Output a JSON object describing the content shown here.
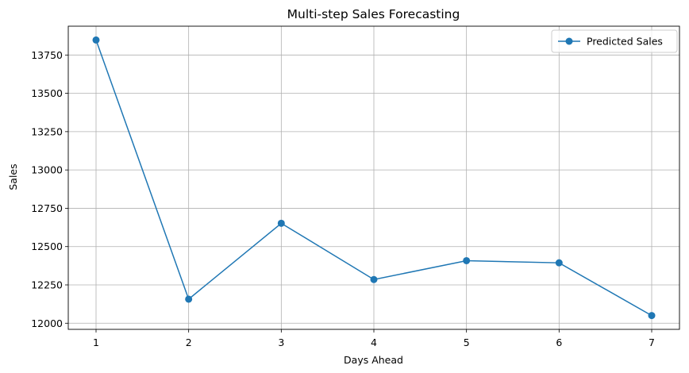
{
  "chart_data": {
    "type": "line",
    "title": "Multi-step Sales Forecasting",
    "xlabel": "Days Ahead",
    "ylabel": "Sales",
    "x": [
      1,
      2,
      3,
      4,
      5,
      6,
      7
    ],
    "series": [
      {
        "name": "Predicted Sales",
        "values": [
          13848,
          12157,
          12652,
          12285,
          12408,
          12394,
          12050
        ],
        "color": "#1f77b4"
      }
    ],
    "xlim": [
      0.7,
      7.3
    ],
    "ylim": [
      11960,
      13938
    ],
    "xticks": [
      1,
      2,
      3,
      4,
      5,
      6,
      7
    ],
    "xtick_labels": [
      "1",
      "2",
      "3",
      "4",
      "5",
      "6",
      "7"
    ],
    "yticks": [
      12000,
      12250,
      12500,
      12750,
      13000,
      13250,
      13500,
      13750
    ],
    "ytick_labels": [
      "12000",
      "12250",
      "12500",
      "12750",
      "13000",
      "13250",
      "13500",
      "13750"
    ],
    "grid": true,
    "legend_position": "top-right",
    "marker": "circle"
  }
}
